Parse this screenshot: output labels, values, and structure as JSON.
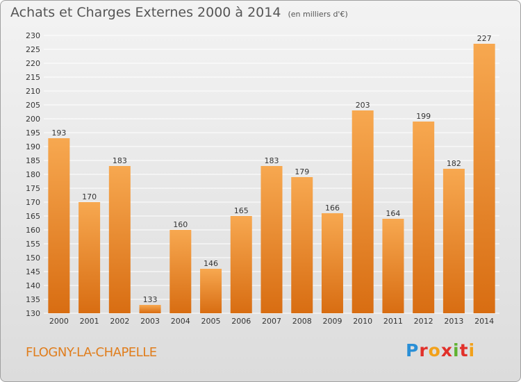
{
  "header": {
    "title": "Achats et Charges Externes 2000 à 2014",
    "unit": "(en milliers d'€)"
  },
  "footer": {
    "place": "FLOGNY-LA-CHAPELLE",
    "logo": "Proxiti"
  },
  "colors": {
    "bar_light": "#f7a850",
    "bar_dark": "#d86d12",
    "place": "#e07d1c"
  },
  "chart_data": {
    "type": "bar",
    "title": "Achats et Charges Externes 2000 à 2014",
    "subtitle": "(en milliers d'€)",
    "categories": [
      "2000",
      "2001",
      "2002",
      "2003",
      "2004",
      "2005",
      "2006",
      "2007",
      "2008",
      "2009",
      "2010",
      "2011",
      "2012",
      "2013",
      "2014"
    ],
    "values": [
      193,
      170,
      183,
      133,
      160,
      146,
      165,
      183,
      179,
      166,
      203,
      164,
      199,
      182,
      227
    ],
    "ylim": [
      130,
      230
    ],
    "yticks": [
      130,
      135,
      140,
      145,
      150,
      155,
      160,
      165,
      170,
      175,
      180,
      185,
      190,
      195,
      200,
      205,
      210,
      215,
      220,
      225,
      230
    ],
    "grid": true,
    "data_labels": true
  }
}
